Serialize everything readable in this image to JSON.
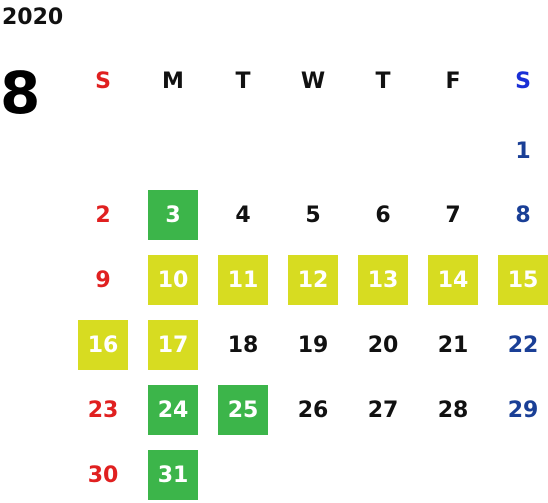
{
  "year": "2020",
  "month": "8",
  "weekday_headers": [
    "S",
    "M",
    "T",
    "W",
    "T",
    "F",
    "S"
  ],
  "colors": {
    "sunday": "#e02020",
    "saturday": "#1a3f96",
    "weekday": "#111111",
    "green_highlight": "#3cb54a",
    "yellow_highlight": "#d7dc21"
  },
  "weeks": [
    [
      {
        "day": "",
        "style": "empty"
      },
      {
        "day": "",
        "style": "empty"
      },
      {
        "day": "",
        "style": "empty"
      },
      {
        "day": "",
        "style": "empty"
      },
      {
        "day": "",
        "style": "empty"
      },
      {
        "day": "",
        "style": "empty"
      },
      {
        "day": "1",
        "style": "sat"
      }
    ],
    [
      {
        "day": "2",
        "style": "sun"
      },
      {
        "day": "3",
        "style": "green"
      },
      {
        "day": "4",
        "style": "plain"
      },
      {
        "day": "5",
        "style": "plain"
      },
      {
        "day": "6",
        "style": "plain"
      },
      {
        "day": "7",
        "style": "plain"
      },
      {
        "day": "8",
        "style": "sat"
      }
    ],
    [
      {
        "day": "9",
        "style": "sun"
      },
      {
        "day": "10",
        "style": "yellow"
      },
      {
        "day": "11",
        "style": "yellow"
      },
      {
        "day": "12",
        "style": "yellow"
      },
      {
        "day": "13",
        "style": "yellow"
      },
      {
        "day": "14",
        "style": "yellow"
      },
      {
        "day": "15",
        "style": "yellow"
      }
    ],
    [
      {
        "day": "16",
        "style": "yellow"
      },
      {
        "day": "17",
        "style": "yellow"
      },
      {
        "day": "18",
        "style": "plain"
      },
      {
        "day": "19",
        "style": "plain"
      },
      {
        "day": "20",
        "style": "plain"
      },
      {
        "day": "21",
        "style": "plain"
      },
      {
        "day": "22",
        "style": "sat"
      }
    ],
    [
      {
        "day": "23",
        "style": "sun"
      },
      {
        "day": "24",
        "style": "green"
      },
      {
        "day": "25",
        "style": "green"
      },
      {
        "day": "26",
        "style": "plain"
      },
      {
        "day": "27",
        "style": "plain"
      },
      {
        "day": "28",
        "style": "plain"
      },
      {
        "day": "29",
        "style": "sat"
      }
    ],
    [
      {
        "day": "30",
        "style": "sun"
      },
      {
        "day": "31",
        "style": "green"
      },
      {
        "day": "",
        "style": "empty"
      },
      {
        "day": "",
        "style": "empty"
      },
      {
        "day": "",
        "style": "empty"
      },
      {
        "day": "",
        "style": "empty"
      },
      {
        "day": "",
        "style": "empty"
      }
    ]
  ]
}
